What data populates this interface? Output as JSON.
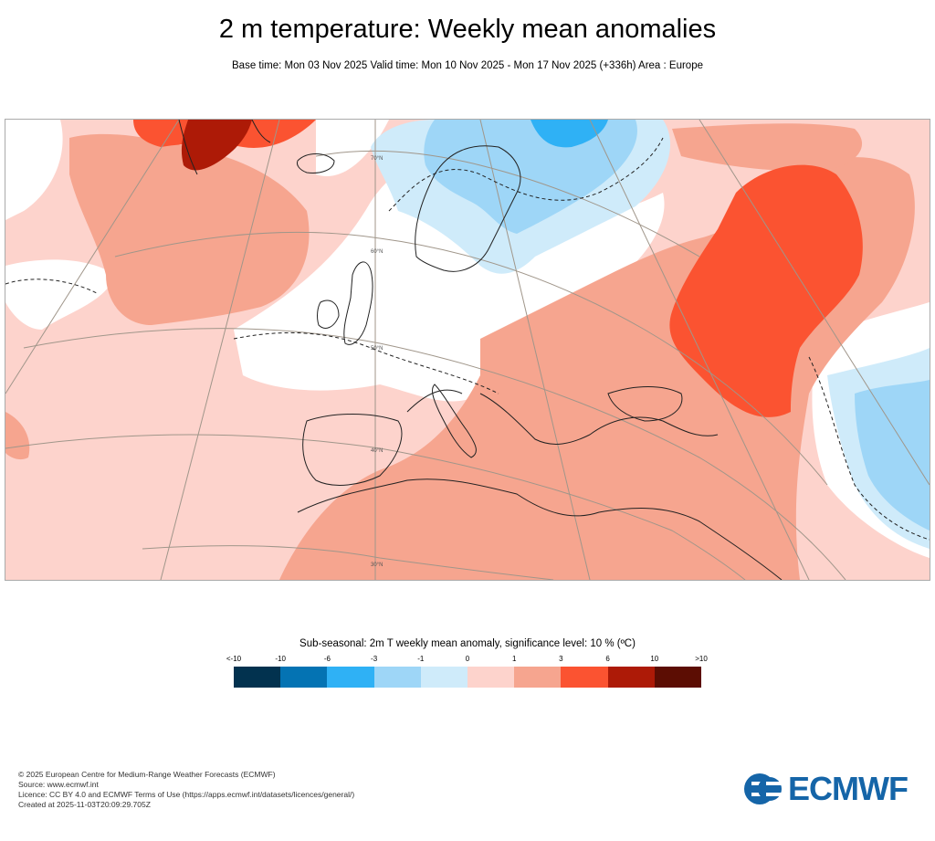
{
  "header": {
    "title": "2 m temperature: Weekly mean anomalies",
    "subtitle": "Base time: Mon 03 Nov 2025 Valid time: Mon 10 Nov 2025 - Mon 17 Nov 2025 (+336h) Area : Europe"
  },
  "map": {
    "latitude_labels": [
      "70°N",
      "60°N",
      "50°N",
      "40°N",
      "30°N"
    ],
    "colors": {
      "lt_m10": "#02324f",
      "m10_m6": "#0473b3",
      "m6_m3": "#2fb1f5",
      "m3_m1": "#9ed6f7",
      "m1_0": "#cfebfa",
      "insignificant": "#ffffff",
      "p0_1": "#fdd3cc",
      "p1_3": "#f6a58f",
      "p3_6": "#fb5331",
      "p6_10": "#ad1a07",
      "gt_10": "#5c0d03"
    }
  },
  "legend": {
    "title": "Sub-seasonal: 2m T weekly mean anomaly, significance level: 10 % (ºC)",
    "tick_labels": [
      "<-10",
      "-10",
      "-6",
      "-3",
      "-1",
      "0",
      "1",
      "3",
      "6",
      "10",
      ">10"
    ],
    "colors": [
      "#02324f",
      "#0473b3",
      "#2fb1f5",
      "#9ed6f7",
      "#cfebfa",
      "#fdd3cc",
      "#f6a58f",
      "#fb5331",
      "#ad1a07",
      "#5c0d03"
    ]
  },
  "footer": {
    "lines": [
      "© 2025 European Centre for Medium-Range Weather Forecasts (ECMWF)",
      "Source: www.ecmwf.int",
      "Licence: CC BY 4.0 and ECMWF Terms of Use (https://apps.ecmwf.int/datasets/licences/general/)",
      "Created at 2025-11-03T20:09:29.705Z"
    ]
  },
  "logo": {
    "text": "ECMWF",
    "color": "#1565a8"
  }
}
